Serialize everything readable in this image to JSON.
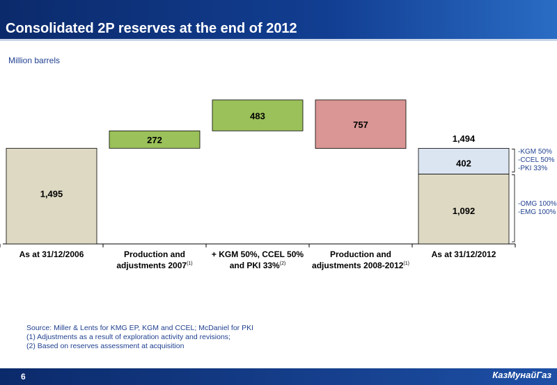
{
  "header": {
    "title": "Consolidated 2P reserves at the end of 2012"
  },
  "chart_data": {
    "type": "waterfall",
    "y_label": "Million barrels",
    "categories": [
      "As at 31/12/2006",
      "Production and adjustments 2007",
      "+ KGM 50%, CCEL 50% and PKI 33%",
      "Production and adjustments 2008-2012",
      "As at 31/12/2012"
    ],
    "category_notes": [
      null,
      "(1)",
      "(2)",
      "(1)",
      null
    ],
    "steps": {
      "values": [
        1495,
        272,
        483,
        757
      ],
      "value_labels": [
        "1,495",
        "272",
        "483",
        "757"
      ],
      "kinds": [
        "total",
        "increase",
        "increase",
        "decrease"
      ],
      "colors": [
        "#ddd9c3",
        "#9bc15a",
        "#9bc15a",
        "#d99694"
      ]
    },
    "final": {
      "segments": [
        {
          "value": 1092,
          "value_label": "1,092",
          "color": "#ddd9c3",
          "notes": [
            "-OMG 100%",
            "-EMG 100%"
          ]
        },
        {
          "value": 402,
          "value_label": "402",
          "color": "#dbe5f1",
          "notes": [
            "-KGM 50%",
            "-CCEL 50%",
            "-PKI 33%"
          ]
        }
      ],
      "total": 1494,
      "total_label": "1,494"
    },
    "ylim": [
      0,
      2400
    ]
  },
  "footer": {
    "source": "Source: Miller & Lents for KMG EP, KGM and CCEL; McDaniel for PKI",
    "notes": [
      "(1)  Adjustments as a result of exploration activity and revisions;",
      "(2)  Based on reserves assessment at acquisition"
    ],
    "page": "6",
    "logo": "КазМунайГаз"
  }
}
